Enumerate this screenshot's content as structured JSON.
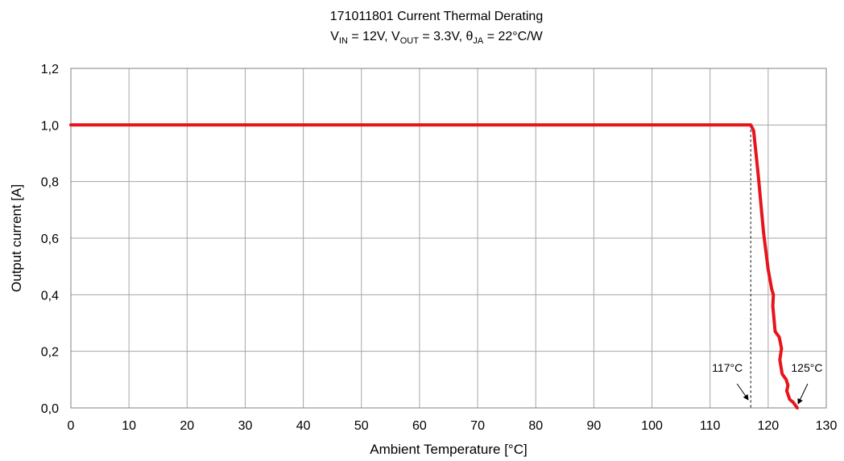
{
  "chart_data": {
    "type": "line",
    "title": "171011801  Current Thermal Derating",
    "subtitle": {
      "v_in": {
        "sym": "V",
        "sub": "IN",
        "rest": " = 12V, "
      },
      "v_out": {
        "sym": "V",
        "sub": "OUT",
        "rest": " = 3.3V, "
      },
      "theta": {
        "sym": "θ",
        "sub": "JA",
        "rest": " = 22°C/W"
      }
    },
    "xlabel": "Ambient Temperature [°C]",
    "ylabel": "Output current [A]",
    "xlim": [
      0,
      130
    ],
    "ylim": [
      0,
      1.2
    ],
    "xticks": [
      0,
      10,
      20,
      30,
      40,
      50,
      60,
      70,
      80,
      90,
      100,
      110,
      120,
      130
    ],
    "yticks": [
      0,
      0.2,
      0.4,
      0.6,
      0.8,
      1.0,
      1.2
    ],
    "ytick_labels": [
      "0,0",
      "0,2",
      "0,4",
      "0,6",
      "0,8",
      "1,0",
      "1,2"
    ],
    "grid": true,
    "series": [
      {
        "color": "#e8141b",
        "x": [
          0,
          117,
          117.5,
          118.3,
          119.2,
          120.0,
          120.6,
          120.9,
          120.8,
          121.2,
          121.9,
          122.3,
          122.0,
          122.4,
          123.1,
          123.4,
          123.2,
          123.7,
          124.3,
          125.0
        ],
        "y": [
          1.0,
          1.0,
          0.98,
          0.82,
          0.62,
          0.49,
          0.42,
          0.4,
          0.36,
          0.27,
          0.25,
          0.21,
          0.17,
          0.12,
          0.1,
          0.08,
          0.06,
          0.03,
          0.02,
          0.0
        ]
      }
    ],
    "annotations": [
      {
        "text": "117°C",
        "x": 117,
        "y": 0.0
      },
      {
        "text": "125°C",
        "x": 125,
        "y": 0.0
      }
    ],
    "reference_line": {
      "x": 117,
      "y_from": 0.0,
      "y_to": 1.0,
      "style": "dashed"
    }
  }
}
